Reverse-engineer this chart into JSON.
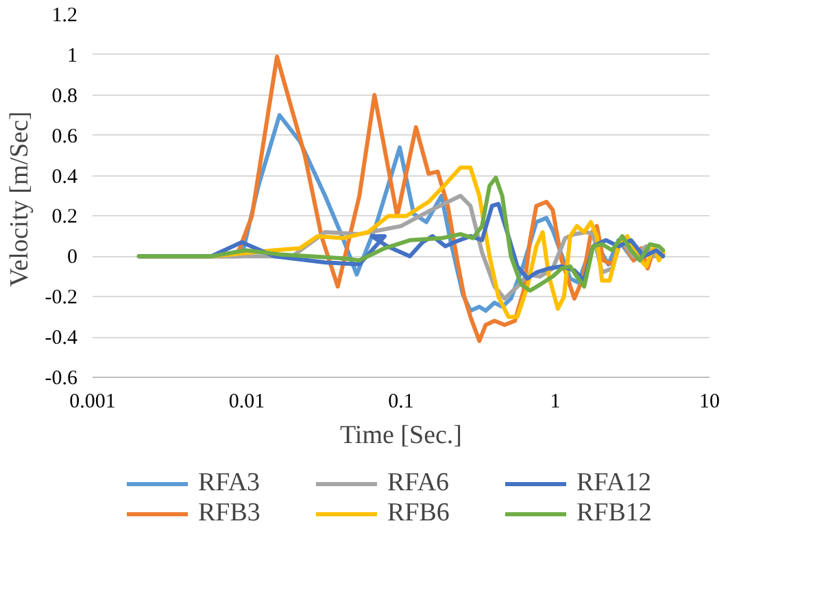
{
  "chart_data": {
    "type": "line",
    "xlabel": "Time [Sec.]",
    "ylabel": "Velocity  [m/Sec]",
    "log": "x",
    "xlim": [
      0.001,
      10
    ],
    "xticks": [
      0.001,
      0.01,
      0.1,
      1,
      10
    ],
    "ylim": [
      -0.6,
      1.2
    ],
    "yticks": [
      -0.6,
      -0.4,
      -0.2,
      0,
      0.2,
      0.4,
      0.6,
      0.8,
      1,
      1.2
    ],
    "grid": "y",
    "legend": "bottom",
    "marker": "none",
    "line_style": "solid",
    "series": [
      {
        "name": "RFA3",
        "color": "#5b9bd5",
        "x": [
          0.002,
          0.00927,
          0.0119,
          0.0163,
          0.0221,
          0.0322,
          0.042,
          0.0516,
          0.0686,
          0.0981,
          0.121,
          0.146,
          0.183,
          0.209,
          0.252,
          0.282,
          0.322,
          0.354,
          0.404,
          0.453,
          0.516,
          0.624,
          0.754,
          0.877,
          0.963,
          1.25,
          1.41,
          1.66,
          1.86,
          2.21,
          2.57,
          3.22,
          3.89,
          4.36,
          5.0
        ],
        "values": [
          0,
          0,
          0.35,
          0.7,
          0.57,
          0.3,
          0.09,
          -0.09,
          0.15,
          0.54,
          0.21,
          0.17,
          0.3,
          0.08,
          -0.19,
          -0.27,
          -0.25,
          -0.27,
          -0.23,
          -0.25,
          -0.21,
          -0.04,
          0.17,
          0.19,
          0.13,
          -0.11,
          -0.13,
          0.02,
          0.06,
          -0.04,
          0.08,
          -0.02,
          0.02,
          0,
          0.01
        ]
      },
      {
        "name": "RFB3",
        "color": "#ed7d31",
        "x": [
          0.002,
          0.00859,
          0.0108,
          0.0157,
          0.0238,
          0.0305,
          0.0389,
          0.0537,
          0.0673,
          0.0945,
          0.125,
          0.151,
          0.173,
          0.201,
          0.234,
          0.257,
          0.282,
          0.322,
          0.354,
          0.404,
          0.47,
          0.547,
          0.624,
          0.686,
          0.754,
          0.877,
          0.963,
          1.1,
          1.33,
          1.51,
          1.7,
          1.86,
          2.05,
          2.34,
          2.67,
          3.22,
          3.61,
          3.97,
          4.36,
          4.7,
          5.0
        ],
        "values": [
          0,
          0,
          0.2,
          0.99,
          0.5,
          0.1,
          -0.15,
          0.3,
          0.8,
          0.2,
          0.64,
          0.41,
          0.42,
          0.25,
          -0.04,
          -0.2,
          -0.3,
          -0.42,
          -0.34,
          -0.32,
          -0.34,
          -0.32,
          -0.17,
          0.08,
          0.25,
          0.27,
          0.23,
          -0.02,
          -0.21,
          -0.11,
          0.11,
          0.15,
          -0.02,
          -0.04,
          0.08,
          -0.02,
          0.04,
          -0.06,
          0.04,
          0,
          0.01
        ]
      },
      {
        "name": "RFA6",
        "color": "#a5a5a5",
        "x": [
          0.002,
          0.0197,
          0.0322,
          0.0537,
          0.1,
          0.157,
          0.243,
          0.282,
          0.335,
          0.404,
          0.47,
          0.568,
          0.66,
          0.798,
          0.963,
          1.16,
          1.33,
          1.6,
          1.76,
          2.01,
          2.34,
          2.67,
          3.22,
          3.89,
          4.36,
          5.0
        ],
        "values": [
          0,
          0,
          0.12,
          0.11,
          0.15,
          0.23,
          0.3,
          0.25,
          0.02,
          -0.15,
          -0.21,
          -0.15,
          -0.09,
          -0.1,
          -0.06,
          0.09,
          0.11,
          0.12,
          0.11,
          -0.08,
          -0.06,
          0.08,
          0,
          0.05,
          0,
          0.01
        ]
      },
      {
        "name": "RFB6",
        "color": "#ffc000",
        "x": [
          0.002,
          0.00589,
          0.0151,
          0.0221,
          0.0288,
          0.042,
          0.0612,
          0.0828,
          0.108,
          0.151,
          0.19,
          0.243,
          0.282,
          0.322,
          0.375,
          0.428,
          0.497,
          0.568,
          0.66,
          0.754,
          0.828,
          0.91,
          1.04,
          1.14,
          1.25,
          1.38,
          1.54,
          1.7,
          1.86,
          2.01,
          2.25,
          2.57,
          2.93,
          3.41,
          3.89,
          4.36,
          4.7,
          5.0
        ],
        "values": [
          0,
          0,
          0.03,
          0.04,
          0.1,
          0.09,
          0.12,
          0.2,
          0.2,
          0.27,
          0.35,
          0.44,
          0.44,
          0.3,
          0,
          -0.2,
          -0.3,
          -0.3,
          -0.15,
          0.05,
          0.12,
          -0.1,
          -0.26,
          -0.2,
          0.1,
          0.15,
          0.12,
          0.17,
          0.1,
          -0.12,
          -0.12,
          0.05,
          0.1,
          0,
          -0.05,
          0.05,
          -0.02,
          0.02
        ]
      },
      {
        "name": "RFA12",
        "color": "#4472c4",
        "x": [
          0.002,
          0.00589,
          0.00927,
          0.0151,
          0.0322,
          0.0537,
          0.0782,
          0.0648,
          0.0813,
          0.114,
          0.138,
          0.16,
          0.194,
          0.221,
          0.282,
          0.335,
          0.389,
          0.428,
          0.497,
          0.568,
          0.66,
          0.754,
          0.91,
          1.1,
          1.33,
          1.54,
          1.76,
          2.13,
          2.57,
          3.1,
          3.75,
          4.53,
          5.0
        ],
        "values": [
          0,
          0,
          0.07,
          0,
          -0.03,
          -0.04,
          0.1,
          0.1,
          0.05,
          0,
          0.07,
          0.1,
          0.05,
          0.07,
          0.1,
          0.08,
          0.25,
          0.26,
          0.1,
          -0.05,
          -0.11,
          -0.08,
          -0.06,
          -0.05,
          -0.07,
          -0.12,
          0.05,
          0.08,
          0.05,
          0.08,
          0,
          0.03,
          0
        ]
      },
      {
        "name": "RFB12",
        "color": "#70ad47",
        "x": [
          0.002,
          0.00589,
          0.00982,
          0.0163,
          0.042,
          0.0537,
          0.0782,
          0.114,
          0.183,
          0.243,
          0.293,
          0.335,
          0.375,
          0.412,
          0.453,
          0.516,
          0.601,
          0.686,
          0.798,
          0.963,
          1.1,
          1.25,
          1.38,
          1.54,
          1.76,
          2.01,
          2.34,
          2.72,
          3.1,
          3.54,
          4.12,
          4.7,
          5.0
        ],
        "values": [
          0,
          0,
          0.03,
          0.01,
          -0.01,
          -0.02,
          0.04,
          0.08,
          0.09,
          0.11,
          0.09,
          0.15,
          0.35,
          0.39,
          0.3,
          0,
          -0.14,
          -0.17,
          -0.14,
          -0.1,
          -0.06,
          -0.05,
          -0.1,
          -0.15,
          0.05,
          0.06,
          0.03,
          0.1,
          0.03,
          -0.02,
          0.06,
          0.05,
          0.03
        ]
      }
    ]
  }
}
